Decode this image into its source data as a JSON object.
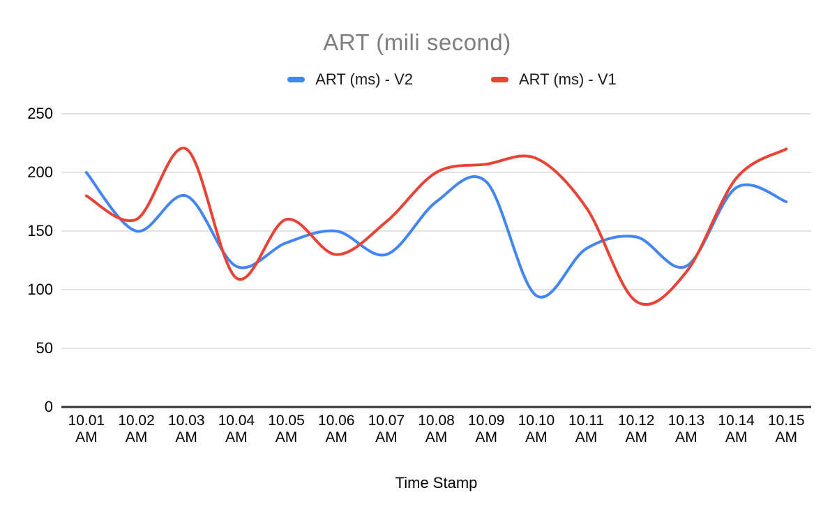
{
  "chart_data": {
    "type": "line",
    "title": "ART (mili second)",
    "xlabel": "Time Stamp",
    "ylabel": "",
    "ylim": [
      0,
      250
    ],
    "y_ticks": [
      0,
      50,
      100,
      150,
      200,
      250
    ],
    "grid": true,
    "smooth": true,
    "legend_position": "top",
    "background": "#ffffff",
    "categories": [
      "10.01 AM",
      "10.02 AM",
      "10.03 AM",
      "10.04 AM",
      "10.05 AM",
      "10.06 AM",
      "10.07 AM",
      "10.08 AM",
      "10.09 AM",
      "10.10 AM",
      "10.11 AM",
      "10.12 AM",
      "10.13 AM",
      "10.14 AM",
      "10.15 AM"
    ],
    "series": [
      {
        "name": "ART (ms) - V2",
        "color": "#4285F4",
        "values": [
          200,
          150,
          180,
          120,
          140,
          150,
          130,
          175,
          192,
          95,
          135,
          145,
          120,
          187,
          175
        ]
      },
      {
        "name": "ART (ms) - V1",
        "color": "#EA4335",
        "values": [
          180,
          160,
          220,
          110,
          160,
          130,
          158,
          200,
          207,
          212,
          170,
          90,
          115,
          195,
          220
        ]
      }
    ]
  }
}
